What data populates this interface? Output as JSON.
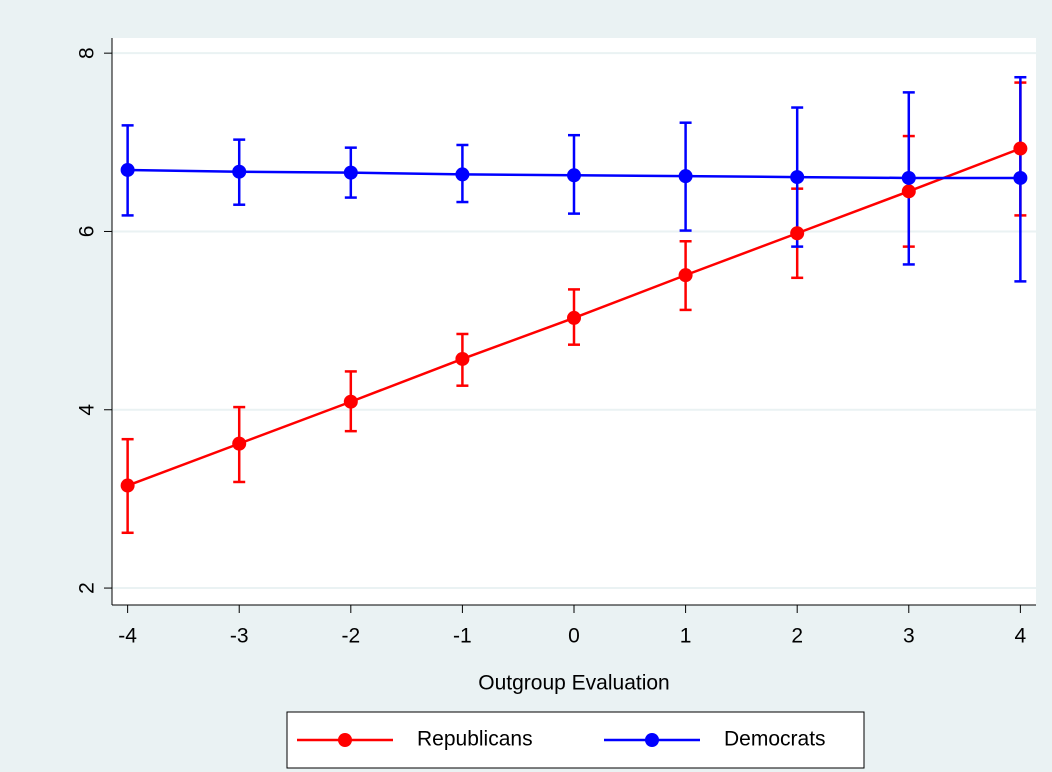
{
  "chart_data": {
    "type": "line",
    "x_label": "Outgroup Evaluation",
    "x": [
      -4,
      -3,
      -2,
      -1,
      0,
      1,
      2,
      3,
      4
    ],
    "series": [
      {
        "name": "Republicans",
        "color": "#ff0000",
        "values": [
          3.15,
          3.62,
          4.09,
          4.57,
          5.03,
          5.51,
          5.98,
          6.45,
          6.93
        ],
        "lower": [
          2.62,
          3.19,
          3.76,
          4.27,
          4.73,
          5.12,
          5.48,
          5.83,
          6.18
        ],
        "upper": [
          3.67,
          4.03,
          4.43,
          4.85,
          5.35,
          5.89,
          6.48,
          7.07,
          7.67
        ]
      },
      {
        "name": "Democrats",
        "color": "#0000ff",
        "values": [
          6.69,
          6.67,
          6.66,
          6.64,
          6.63,
          6.62,
          6.61,
          6.6,
          6.6
        ],
        "lower": [
          6.18,
          6.3,
          6.38,
          6.33,
          6.2,
          6.01,
          5.83,
          5.63,
          5.44
        ],
        "upper": [
          7.19,
          7.03,
          6.94,
          6.97,
          7.08,
          7.22,
          7.39,
          7.56,
          7.73
        ]
      }
    ],
    "xlim": [
      -4.14,
      4.14
    ],
    "xticks": [
      -4,
      -3,
      -2,
      -1,
      0,
      1,
      2,
      3,
      4
    ],
    "ylim": [
      1.81,
      8.17
    ],
    "yticks": [
      2,
      4,
      6,
      8
    ],
    "grid": true,
    "legend": "bottom"
  }
}
